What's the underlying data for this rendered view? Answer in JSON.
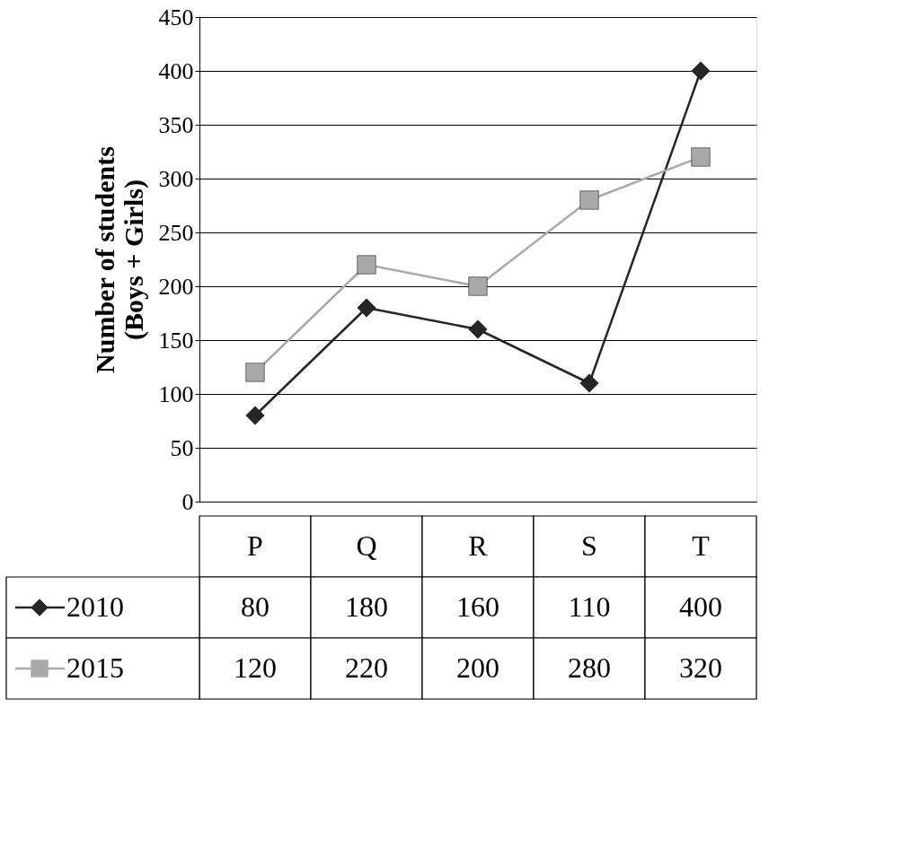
{
  "chart_data": {
    "type": "line",
    "ylabel": "Number of students\n(Boys + Girls)",
    "categories": [
      "P",
      "Q",
      "R",
      "S",
      "T"
    ],
    "series": [
      {
        "name": "2010",
        "color": "#262626",
        "marker": "diamond",
        "values": [
          80,
          180,
          160,
          110,
          400
        ]
      },
      {
        "name": "2015",
        "color": "#a9a9a9",
        "marker": "square",
        "values": [
          120,
          220,
          200,
          280,
          320
        ]
      }
    ],
    "ylim": [
      0,
      450
    ],
    "yticks": [
      0,
      50,
      100,
      150,
      200,
      250,
      300,
      350,
      400,
      450
    ],
    "grid": "y",
    "legend": "bottom",
    "data_labels": true,
    "line_style": "solid"
  }
}
